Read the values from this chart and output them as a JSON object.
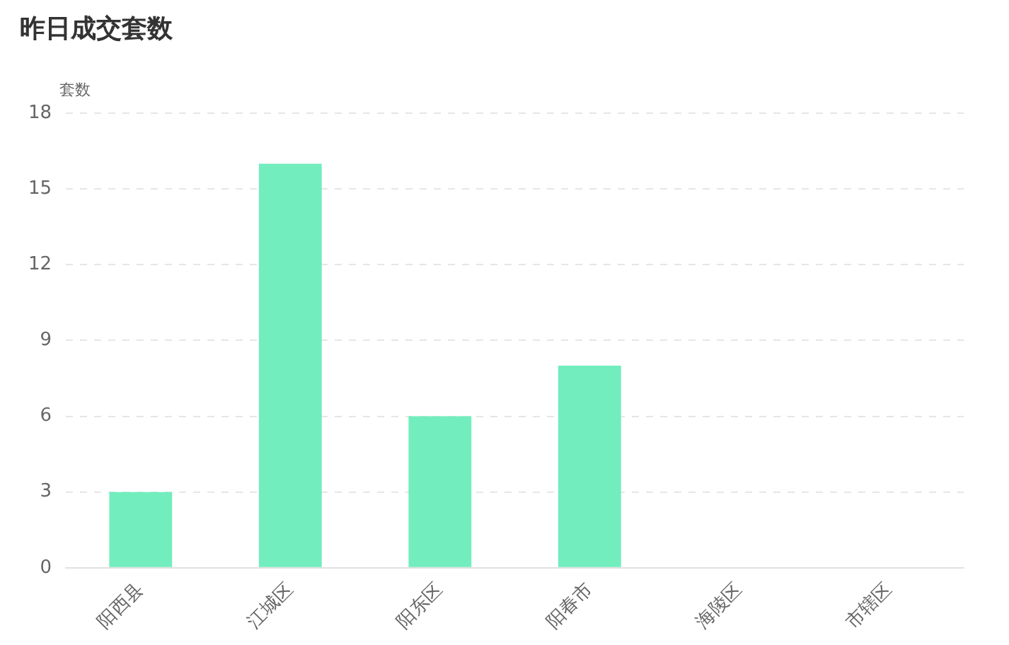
{
  "chart_data": {
    "type": "bar",
    "title": "昨日成交套数",
    "ylabel": "套数",
    "categories": [
      "阳西县",
      "江城区",
      "阳东区",
      "阳春市",
      "海陵区",
      "市辖区"
    ],
    "values": [
      3,
      16,
      6,
      8,
      0,
      0
    ],
    "color": "#72edbe",
    "ylim": [
      0,
      18
    ],
    "yticks": [
      0,
      3,
      6,
      9,
      12,
      15,
      18
    ],
    "grid": "y"
  }
}
